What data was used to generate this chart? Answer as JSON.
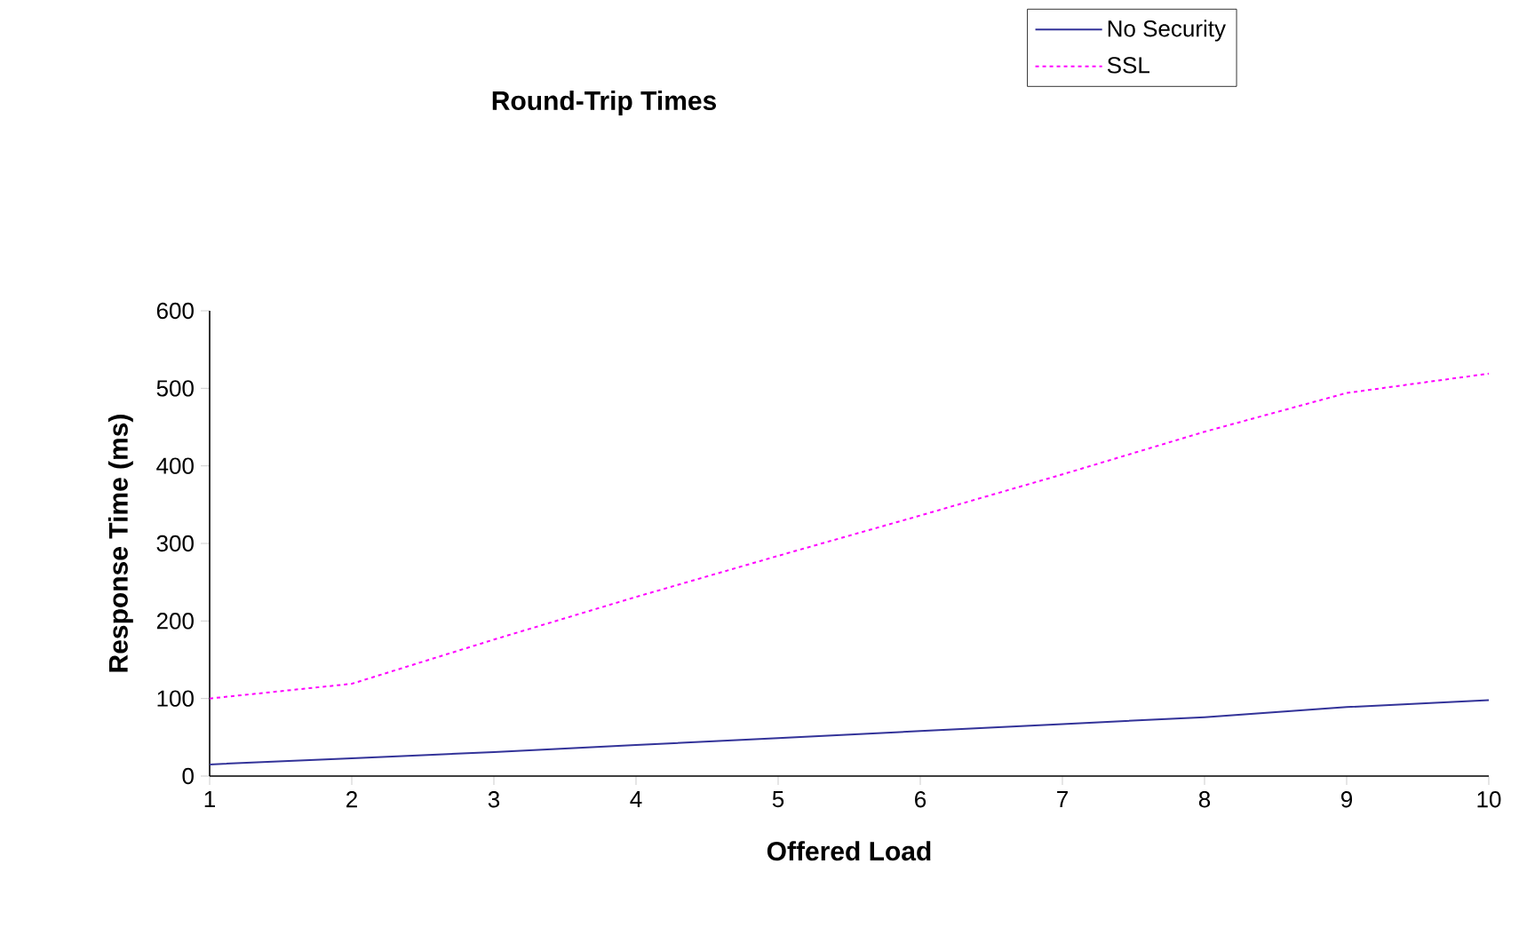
{
  "chart_data": {
    "type": "line",
    "title": "Round-Trip Times",
    "xlabel": "Offered Load",
    "ylabel": "Response Time (ms)",
    "x": [
      1,
      2,
      3,
      4,
      5,
      6,
      7,
      8,
      9,
      10
    ],
    "series": [
      {
        "name": "No Security",
        "color": "#333399",
        "line_style": "solid",
        "values": [
          15,
          23,
          31,
          40,
          49,
          58,
          67,
          76,
          89,
          98
        ]
      },
      {
        "name": "SSL",
        "color": "#ff00ff",
        "line_style": "dotted",
        "values": [
          100,
          119,
          176,
          231,
          284,
          336,
          389,
          444,
          494,
          519
        ]
      }
    ],
    "xlim": [
      1,
      10
    ],
    "xticks": [
      1,
      2,
      3,
      4,
      5,
      6,
      7,
      8,
      9,
      10
    ],
    "ylim": [
      0,
      600
    ],
    "yticks": [
      0,
      100,
      200,
      300,
      400,
      500,
      600
    ],
    "grid": false,
    "legend": "top right",
    "marker": "none"
  }
}
